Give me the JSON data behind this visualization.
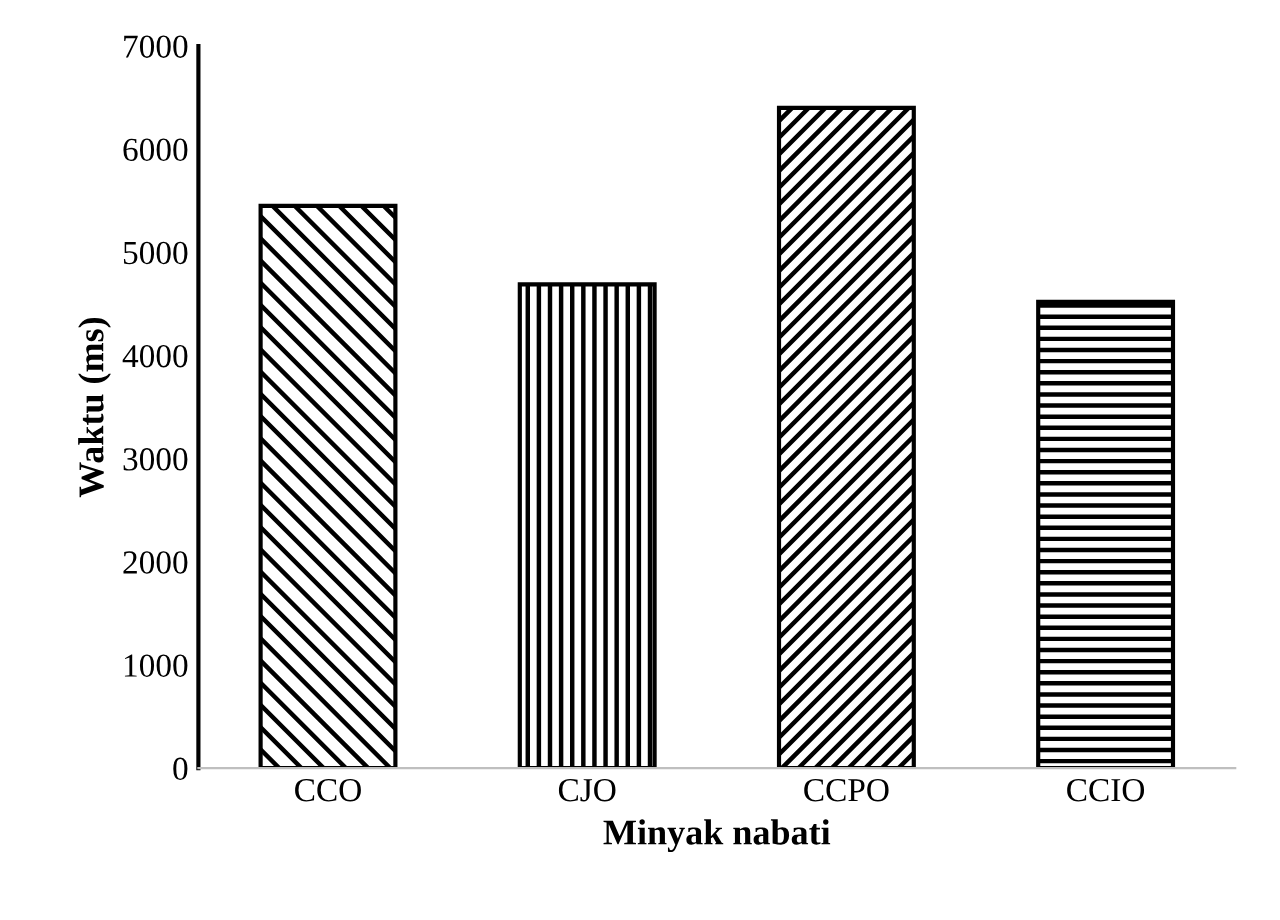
{
  "chart_data": {
    "type": "bar",
    "xlabel": "Minyak nabati",
    "ylabel": "Waktu (ms)",
    "categories": [
      "CCO",
      "CJO",
      "CCPO",
      "CCIO"
    ],
    "values": [
      5450,
      4690,
      6400,
      4520
    ],
    "color": "#000000",
    "ylim": [
      0,
      7000
    ],
    "yticks": [
      0,
      1000,
      2000,
      3000,
      4000,
      5000,
      6000,
      7000
    ],
    "grid": false,
    "legend": false
  }
}
